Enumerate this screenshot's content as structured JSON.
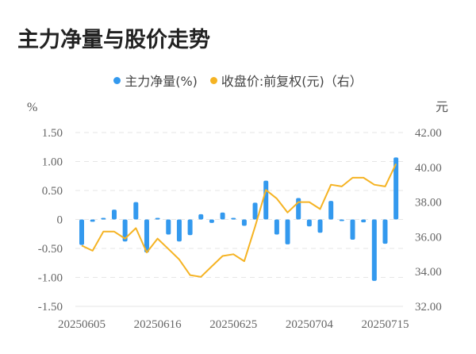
{
  "title": "主力净量与股价走势",
  "legend": [
    {
      "label": "主力净量(%)",
      "color": "#3399ee"
    },
    {
      "label": "收盘价:前复权(元)（右）",
      "color": "#f5b323"
    }
  ],
  "axes": {
    "left_unit": "%",
    "right_unit": "元",
    "left_ticks": [
      "1.50",
      "1.00",
      "0.50",
      "0",
      "-0.50",
      "-1.00",
      "-1.50"
    ],
    "right_ticks": [
      "42.00",
      "40.00",
      "38.00",
      "36.00",
      "34.00",
      "32.00"
    ],
    "x_tick_labels": [
      "20250605",
      "20250616",
      "20250625",
      "20250704",
      "20250715"
    ]
  },
  "chart_data": {
    "type": "bar+line",
    "title": "主力净量与股价走势",
    "x": [
      "20250605",
      "20250606",
      "20250609",
      "20250610",
      "20250611",
      "20250612",
      "20250613",
      "20250616",
      "20250617",
      "20250618",
      "20250619",
      "20250620",
      "20250623",
      "20250624",
      "20250625",
      "20250626",
      "20250627",
      "20250630",
      "20250701",
      "20250702",
      "20250703",
      "20250704",
      "20250707",
      "20250708",
      "20250709",
      "20250710",
      "20250711",
      "20250714",
      "20250715",
      "20250716"
    ],
    "series": [
      {
        "name": "主力净量(%)",
        "type": "bar",
        "axis": "left",
        "values": [
          -0.44,
          -0.04,
          0.01,
          0.17,
          -0.38,
          0.3,
          -0.57,
          0.02,
          -0.26,
          -0.38,
          -0.27,
          0.09,
          -0.06,
          0.12,
          0.01,
          -0.11,
          0.29,
          0.67,
          -0.26,
          -0.43,
          0.37,
          -0.12,
          -0.23,
          0.32,
          -0.02,
          -0.35,
          -0.05,
          -1.06,
          -0.42,
          1.07
        ]
      },
      {
        "name": "收盘价:前复权(元)",
        "type": "line",
        "axis": "right",
        "values": [
          35.5,
          35.2,
          36.3,
          36.3,
          35.9,
          36.5,
          35.1,
          35.9,
          35.3,
          34.7,
          33.8,
          33.7,
          34.3,
          34.9,
          35.0,
          34.6,
          36.6,
          38.7,
          38.2,
          37.4,
          38.0,
          38.0,
          37.6,
          39.0,
          38.9,
          39.4,
          39.4,
          39.0,
          38.9,
          40.2
        ]
      }
    ],
    "ylim_left": [
      -1.5,
      1.5
    ],
    "ylim_right": [
      32,
      42
    ],
    "ylabel_left": "%",
    "ylabel_right": "元",
    "grid": true,
    "legend_position": "top"
  }
}
